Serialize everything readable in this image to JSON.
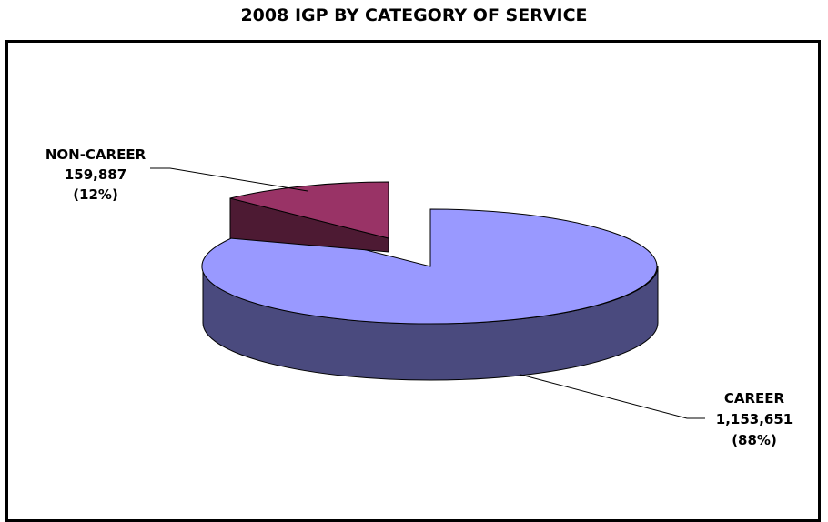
{
  "chart_data": {
    "type": "pie",
    "title": "2008 IGP BY CATEGORY OF SERVICE",
    "slices": [
      {
        "category": "CAREER",
        "value": 1153651,
        "value_label": "1,153,651",
        "percent_label": "(88%)",
        "top_color": "#9999ff",
        "side_color": "#4a4a7e"
      },
      {
        "category": "NON-CAREER",
        "value": 159887,
        "value_label": "159,887",
        "percent_label": "(12%)",
        "top_color": "#993366",
        "side_color": "#4d1a33"
      }
    ]
  }
}
